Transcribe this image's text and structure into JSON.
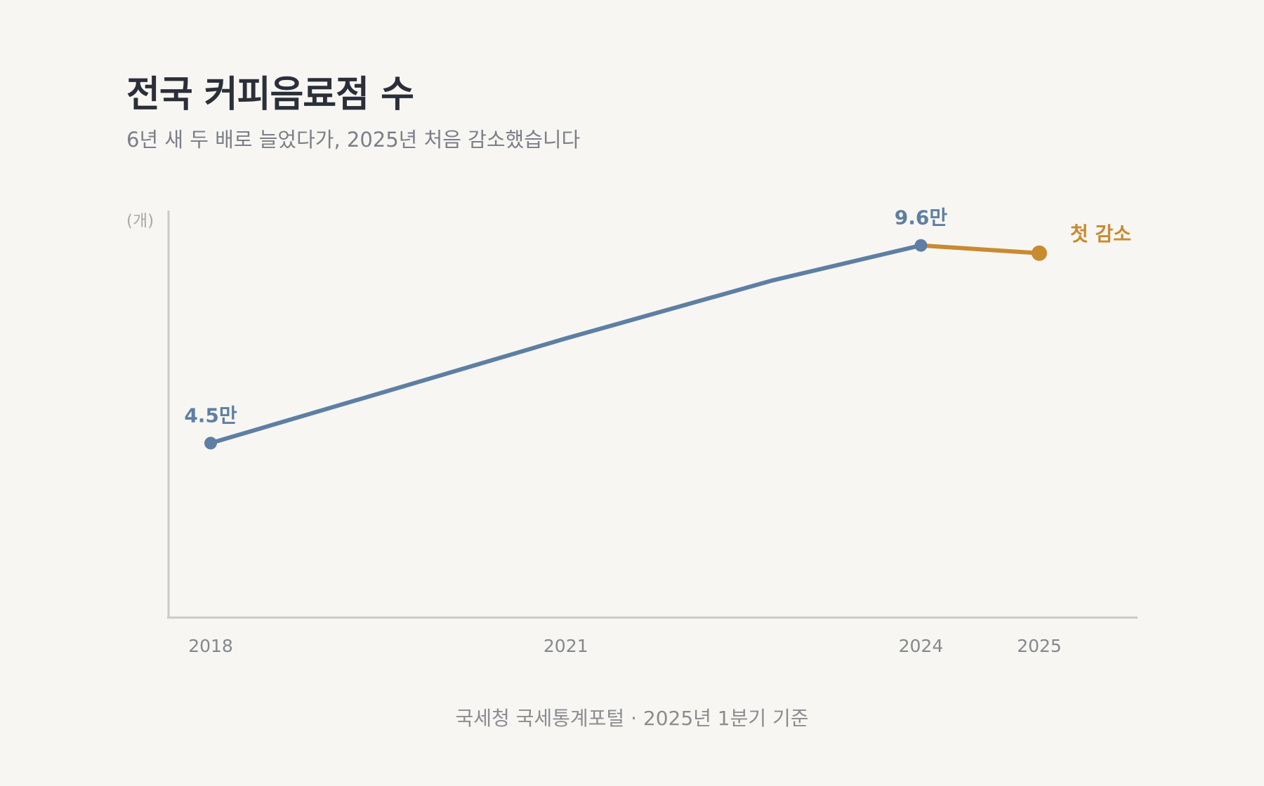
{
  "header": {
    "title": "전국 커피음료점 수",
    "subtitle": "6년 새 두 배로 늘었다가, 2025년 처음 감소했습니다"
  },
  "footer": {
    "source": "국세청 국세통계포털 · 2025년 1분기 기준"
  },
  "colors": {
    "background": "#f7f6f2",
    "series_main": "#5e7fa3",
    "series_highlight": "#c98a30",
    "axis": "#cbcac6",
    "title": "#2b2f3a",
    "subtitle": "#7b7f88"
  },
  "chart_data": {
    "type": "line",
    "ylabel": "(개)",
    "ylim": [
      0,
      105000
    ],
    "grid": false,
    "x_ticks": [
      "2018",
      "2021",
      "2024",
      "2025"
    ],
    "points": [
      {
        "x": 2018,
        "y": 45000
      },
      {
        "x": 2021,
        "y": 72000
      },
      {
        "x": 2022.75,
        "y": 87000
      },
      {
        "x": 2024,
        "y": 96000
      },
      {
        "x": 2025,
        "y": 94000
      }
    ],
    "annotations": [
      {
        "x": 2018,
        "y": 45000,
        "text": "4.5만",
        "color": "#5e7fa3"
      },
      {
        "x": 2024,
        "y": 96000,
        "text": "9.6만",
        "color": "#5e7fa3"
      },
      {
        "x": 2025,
        "y": 94000,
        "text": "첫 감소",
        "color": "#c98a30"
      }
    ],
    "highlight_segment": {
      "from": 2024,
      "to": 2025,
      "color": "#c98a30"
    }
  }
}
